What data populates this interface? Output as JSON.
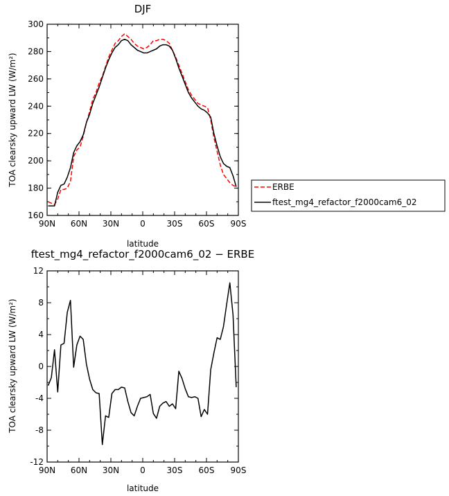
{
  "chart_data": [
    {
      "type": "line",
      "title": "DJF",
      "xlabel": "latitude",
      "ylabel": "TOA clearsky upward LW (W/m²)",
      "xlim": [
        90,
        -90
      ],
      "ylim": [
        160,
        300
      ],
      "xticks": [
        90,
        60,
        30,
        0,
        -30,
        -60,
        -90
      ],
      "xtick_labels": [
        "90N",
        "60N",
        "30N",
        "0",
        "30S",
        "60S",
        "90S"
      ],
      "yticks": [
        160,
        180,
        200,
        220,
        240,
        260,
        280,
        300
      ],
      "ytick_labels": [
        "160",
        "180",
        "200",
        "220",
        "240",
        "260",
        "280",
        "300"
      ],
      "legend": "right",
      "series": [
        {
          "name": "ERBE",
          "color": "#ff0000",
          "style": "dashed",
          "x": [
            89,
            86,
            83,
            80,
            77,
            74,
            71,
            68,
            65,
            62,
            59,
            56,
            53,
            50,
            47,
            44,
            41,
            38,
            35,
            32,
            29,
            26,
            23,
            20,
            17,
            14,
            11,
            8,
            5,
            2,
            -1,
            -4,
            -7,
            -10,
            -13,
            -16,
            -19,
            -22,
            -25,
            -28,
            -31,
            -34,
            -37,
            -40,
            -43,
            -46,
            -49,
            -52,
            -55,
            -58,
            -61,
            -64,
            -67,
            -70,
            -73,
            -76,
            -79,
            -82,
            -85,
            -88
          ],
          "y": [
            170,
            169,
            168,
            172,
            179,
            179,
            180,
            185,
            203,
            208,
            210,
            218,
            228,
            236,
            245,
            250,
            257,
            262,
            269,
            276,
            281,
            286,
            288,
            291,
            293,
            291,
            289,
            286,
            284,
            283,
            282,
            283,
            285,
            288,
            288,
            289,
            289,
            288,
            286,
            281,
            276,
            270,
            264,
            258,
            252,
            248,
            245,
            242,
            241,
            240,
            239,
            230,
            217,
            207,
            197,
            190,
            187,
            184,
            182,
            181
          ]
        },
        {
          "name": "ftest_mg4_refactor_f2000cam6_02",
          "color": "#000000",
          "style": "solid",
          "x": [
            89,
            86,
            83,
            80,
            77,
            74,
            71,
            68,
            65,
            62,
            59,
            56,
            53,
            50,
            47,
            44,
            41,
            38,
            35,
            32,
            29,
            26,
            23,
            20,
            17,
            14,
            11,
            8,
            5,
            2,
            -1,
            -4,
            -7,
            -10,
            -13,
            -16,
            -19,
            -22,
            -25,
            -28,
            -31,
            -34,
            -37,
            -40,
            -43,
            -46,
            -49,
            -52,
            -55,
            -58,
            -61,
            -64,
            -67,
            -70,
            -73,
            -76,
            -79,
            -82,
            -85,
            -88
          ],
          "y": [
            167,
            167,
            167,
            177,
            182,
            183,
            188,
            195,
            206,
            211,
            214,
            219,
            228,
            234,
            242,
            248,
            254,
            261,
            268,
            274,
            279,
            283,
            285,
            288,
            289,
            288,
            285,
            283,
            281,
            280,
            279,
            279,
            280,
            281,
            282,
            284,
            285,
            285,
            284,
            281,
            275,
            268,
            262,
            256,
            250,
            246,
            243,
            240,
            238,
            237,
            235,
            232,
            220,
            211,
            203,
            198,
            196,
            195,
            189,
            181
          ]
        }
      ]
    },
    {
      "type": "line",
      "title": "ftest_mg4_refactor_f2000cam6_02 − ERBE",
      "xlabel": "latitude",
      "ylabel": "TOA clearsky upward LW (W/m²)",
      "xlim": [
        90,
        -90
      ],
      "ylim": [
        -12,
        12
      ],
      "xticks": [
        90,
        60,
        30,
        0,
        -30,
        -60,
        -90
      ],
      "xtick_labels": [
        "90N",
        "60N",
        "30N",
        "0",
        "30S",
        "60S",
        "90S"
      ],
      "yticks": [
        -12,
        -8,
        -4,
        0,
        4,
        8,
        12
      ],
      "ytick_labels": [
        "-12",
        "-8",
        "-4",
        "0",
        "4",
        "8",
        "12"
      ],
      "series": [
        {
          "color": "#000000",
          "style": "solid",
          "x": [
            89,
            86,
            83,
            80,
            77,
            74,
            71,
            68,
            65,
            62,
            59,
            56,
            53,
            50,
            47,
            44,
            41,
            38,
            35,
            32,
            29,
            26,
            23,
            20,
            17,
            14,
            11,
            8,
            5,
            2,
            -1,
            -4,
            -7,
            -10,
            -13,
            -16,
            -19,
            -22,
            -25,
            -28,
            -31,
            -34,
            -37,
            -40,
            -43,
            -46,
            -49,
            -52,
            -55,
            -58,
            -61,
            -64,
            -67,
            -70,
            -73,
            -76,
            -79,
            -82,
            -85,
            -88
          ],
          "y": [
            -2.4,
            -1.4,
            2.1,
            -3.2,
            2.7,
            2.9,
            6.8,
            8.3,
            -0.1,
            2.7,
            3.8,
            3.4,
            0.3,
            -1.6,
            -2.9,
            -3.3,
            -3.4,
            -9.8,
            -6.2,
            -6.4,
            -3.4,
            -2.9,
            -2.9,
            -2.6,
            -2.7,
            -4.4,
            -5.8,
            -6.2,
            -5.0,
            -4.0,
            -3.9,
            -3.8,
            -3.5,
            -5.9,
            -6.5,
            -5.0,
            -4.6,
            -4.4,
            -5.0,
            -4.7,
            -5.3,
            -0.6,
            -1.5,
            -2.8,
            -3.8,
            -3.9,
            -3.8,
            -4.0,
            -6.3,
            -5.4,
            -6.0,
            -0.4,
            1.7,
            3.6,
            3.4,
            5.0,
            7.8,
            10.5,
            6.5,
            -2.6
          ]
        }
      ]
    }
  ]
}
